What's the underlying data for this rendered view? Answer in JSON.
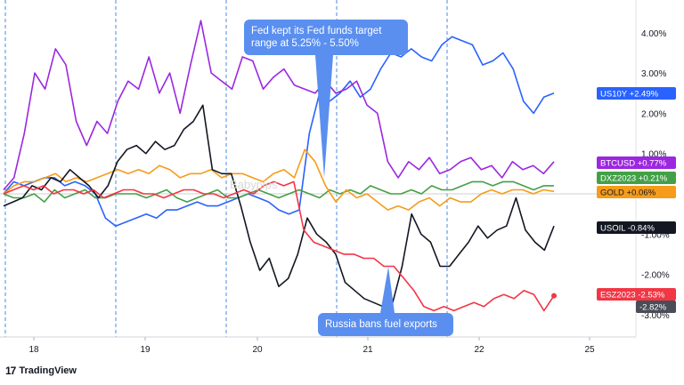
{
  "chart_data": {
    "type": "line",
    "x_labels": [
      "18",
      "19",
      "20",
      "21",
      "22",
      "25"
    ],
    "y_ticks": [
      "4.00%",
      "3.00%",
      "2.00%",
      "1.00%",
      "-1.00%",
      "-2.00%",
      "-3.00%"
    ],
    "ylim": [
      -3.6,
      4.6
    ],
    "grid": false,
    "series": [
      {
        "name": "US10Y",
        "badge": "US10Y  +2.49%",
        "color": "#2962ff",
        "values": [
          0.0,
          0.3,
          0.2,
          0.3,
          0.4,
          0.4,
          0.2,
          0.3,
          0.2,
          0.0,
          -0.6,
          -0.8,
          -0.7,
          -0.6,
          -0.5,
          -0.6,
          -0.4,
          -0.4,
          -0.3,
          -0.2,
          -0.3,
          -0.3,
          -0.2,
          -0.1,
          0.0,
          -0.1,
          -0.2,
          -0.4,
          -0.5,
          -0.4,
          1.5,
          2.5,
          2.3,
          2.5,
          2.8,
          2.4,
          2.6,
          3.1,
          3.5,
          3.4,
          3.6,
          3.4,
          3.3,
          3.7,
          3.9,
          3.8,
          3.7,
          3.2,
          3.3,
          3.5,
          3.1,
          2.3,
          2.0,
          2.4,
          2.5
        ]
      },
      {
        "name": "BTCUSD",
        "badge": "BTCUSD  +0.77%",
        "color": "#9c27e0",
        "values": [
          0.1,
          0.4,
          1.5,
          3.0,
          2.6,
          3.6,
          3.2,
          1.8,
          1.2,
          1.8,
          1.5,
          2.3,
          2.8,
          2.6,
          3.4,
          2.5,
          3.0,
          2.0,
          3.2,
          4.3,
          3.0,
          2.8,
          2.6,
          3.4,
          3.3,
          2.6,
          2.9,
          3.1,
          2.7,
          2.6,
          2.5,
          2.8,
          2.5,
          2.6,
          2.8,
          2.2,
          2.0,
          0.8,
          0.4,
          0.8,
          0.6,
          0.9,
          0.5,
          0.6,
          0.8,
          0.9,
          0.6,
          0.7,
          0.4,
          0.8,
          0.6,
          0.7,
          0.5,
          0.8
        ]
      },
      {
        "name": "DXZ2023",
        "badge": "DXZ2023  +0.21%",
        "color": "#43a047",
        "values": [
          0.0,
          -0.1,
          -0.1,
          0.0,
          -0.2,
          0.1,
          -0.1,
          0.0,
          0.1,
          -0.1,
          -0.1,
          0.0,
          0.0,
          0.0,
          -0.1,
          0.0,
          0.1,
          -0.1,
          -0.2,
          -0.1,
          0.0,
          0.1,
          -0.1,
          -0.1,
          0.0,
          0.1,
          0.0,
          -0.1,
          0.0,
          0.1,
          0.0,
          -0.1,
          0.1,
          0.0,
          0.1,
          0.0,
          0.2,
          0.1,
          0.0,
          0.0,
          0.1,
          0.0,
          0.2,
          0.1,
          0.1,
          0.2,
          0.3,
          0.3,
          0.2,
          0.3,
          0.3,
          0.2,
          0.1,
          0.2,
          0.2
        ]
      },
      {
        "name": "GOLD",
        "badge": "GOLD  +0.06%",
        "color": "#f59c1a",
        "values": [
          0.0,
          0.2,
          0.3,
          0.3,
          0.4,
          0.5,
          0.3,
          0.4,
          0.3,
          0.4,
          0.5,
          0.6,
          0.5,
          0.6,
          0.5,
          0.7,
          0.6,
          0.4,
          0.5,
          0.5,
          0.6,
          0.4,
          0.5,
          0.5,
          0.4,
          0.3,
          0.5,
          0.6,
          0.4,
          1.1,
          0.8,
          0.2,
          -0.2,
          0.1,
          -0.1,
          0.0,
          -0.2,
          -0.4,
          -0.3,
          -0.4,
          -0.2,
          -0.1,
          -0.3,
          -0.1,
          -0.2,
          -0.2,
          0.0,
          0.1,
          0.0,
          0.1,
          0.1,
          0.0,
          0.1,
          0.06
        ]
      },
      {
        "name": "USOIL",
        "badge": "USOIL  -0.84%",
        "color": "#131722",
        "values": [
          -0.3,
          -0.2,
          -0.1,
          0.2,
          0.1,
          0.4,
          0.3,
          0.6,
          0.4,
          0.2,
          -0.1,
          0.2,
          0.8,
          1.1,
          1.2,
          1.0,
          1.3,
          1.1,
          1.2,
          1.6,
          1.8,
          2.2,
          0.6,
          0.5,
          0.5,
          -0.3,
          -1.2,
          -1.9,
          -1.6,
          -2.3,
          -2.1,
          -1.5,
          -0.6,
          -1.0,
          -1.2,
          -1.5,
          -2.2,
          -2.4,
          -2.6,
          -2.7,
          -2.8,
          -2.7,
          -1.8,
          -0.5,
          -1.0,
          -1.2,
          -1.8,
          -1.8,
          -1.5,
          -1.2,
          -0.8,
          -1.1,
          -0.9,
          -0.8,
          -0.1,
          -0.9,
          -1.2,
          -1.4,
          -0.8
        ]
      },
      {
        "name": "ESZ2023",
        "badge": "ESZ2023  -2.53%",
        "color": "#f23645",
        "values": [
          0.0,
          0.1,
          0.2,
          0.1,
          0.2,
          0.0,
          0.1,
          0.1,
          0.0,
          0.1,
          -0.1,
          0.0,
          0.1,
          0.1,
          0.0,
          0.0,
          -0.1,
          0.0,
          0.1,
          0.1,
          0.0,
          0.0,
          -0.1,
          0.0,
          0.1,
          0.0,
          0.2,
          0.3,
          0.2,
          0.3,
          -0.9,
          -1.2,
          -1.3,
          -1.4,
          -1.5,
          -1.5,
          -1.6,
          -1.6,
          -1.8,
          -1.8,
          -2.1,
          -2.4,
          -2.8,
          -2.9,
          -2.8,
          -2.9,
          -2.8,
          -2.7,
          -2.8,
          -2.6,
          -2.5,
          -2.6,
          -2.4,
          -2.5,
          -2.9,
          -2.53
        ]
      }
    ],
    "extra_badge": {
      "text": "-2.82%",
      "color": "#4a4d57"
    },
    "annotations": [
      {
        "text": "Fed kept its Fed funds target range at 5.25% - 5.50%"
      },
      {
        "text": "Russia bans fuel exports"
      }
    ]
  },
  "watermark": "Babypips",
  "brand": {
    "mark": "17",
    "name": "TradingView"
  }
}
